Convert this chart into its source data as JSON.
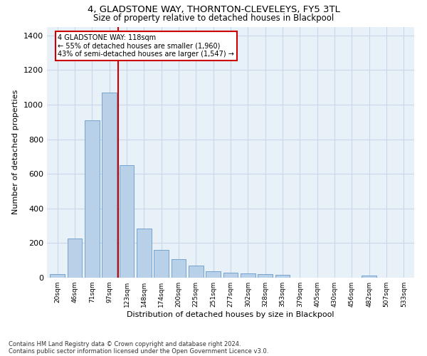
{
  "title_line1": "4, GLADSTONE WAY, THORNTON-CLEVELEYS, FY5 3TL",
  "title_line2": "Size of property relative to detached houses in Blackpool",
  "xlabel": "Distribution of detached houses by size in Blackpool",
  "ylabel": "Number of detached properties",
  "categories": [
    "20sqm",
    "46sqm",
    "71sqm",
    "97sqm",
    "123sqm",
    "148sqm",
    "174sqm",
    "200sqm",
    "225sqm",
    "251sqm",
    "277sqm",
    "302sqm",
    "328sqm",
    "353sqm",
    "379sqm",
    "405sqm",
    "430sqm",
    "456sqm",
    "482sqm",
    "507sqm",
    "533sqm"
  ],
  "values": [
    20,
    225,
    910,
    1070,
    650,
    285,
    160,
    107,
    70,
    38,
    28,
    23,
    20,
    15,
    0,
    0,
    0,
    0,
    12,
    0,
    0
  ],
  "bar_color": "#b8d0e8",
  "bar_edge_color": "#6699cc",
  "grid_color": "#c8d8e8",
  "background_color": "#e8f0f8",
  "vline_color": "#cc0000",
  "vline_x_index": 3,
  "annotation_text": "4 GLADSTONE WAY: 118sqm\n← 55% of detached houses are smaller (1,960)\n43% of semi-detached houses are larger (1,547) →",
  "annotation_box_color": "#ffffff",
  "annotation_box_edge": "#cc0000",
  "footnote1": "Contains HM Land Registry data © Crown copyright and database right 2024.",
  "footnote2": "Contains public sector information licensed under the Open Government Licence v3.0.",
  "ylim": [
    0,
    1450
  ],
  "yticks": [
    0,
    200,
    400,
    600,
    800,
    1000,
    1200,
    1400
  ]
}
